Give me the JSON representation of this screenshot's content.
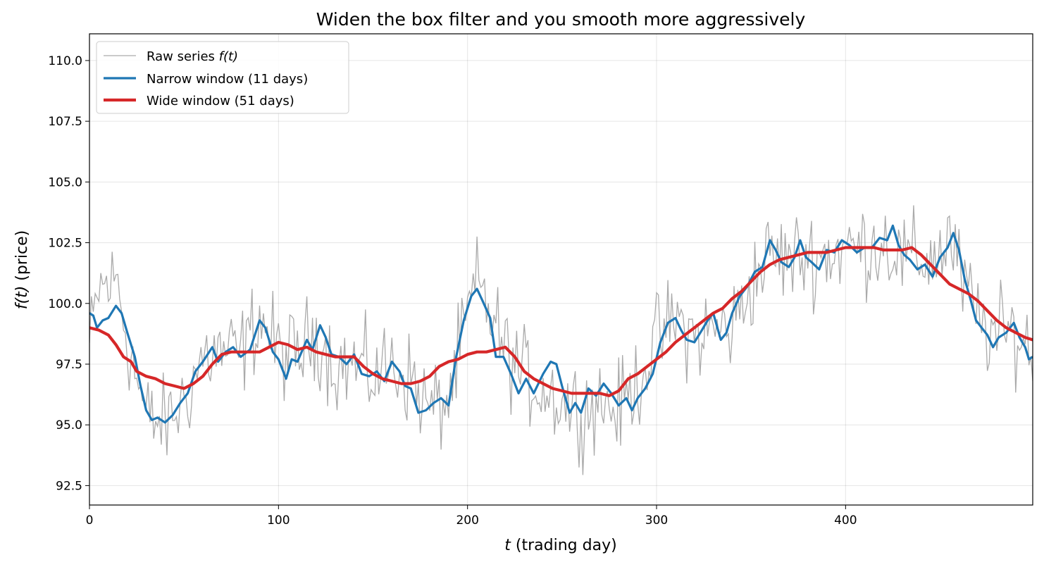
{
  "chart_data": {
    "type": "line",
    "title": "Widen the box filter and you smooth more aggressively",
    "xlabel_var": "t",
    "xlabel_rest": " (trading day)",
    "ylabel_var": "f(t)",
    "ylabel_rest": " (price)",
    "xlim": [
      0,
      499
    ],
    "ylim": [
      91.7,
      111.1
    ],
    "xticks": [
      0,
      100,
      200,
      300,
      400
    ],
    "yticks": [
      92.5,
      95.0,
      97.5,
      100.0,
      102.5,
      105.0,
      107.5,
      110.0
    ],
    "grid": true,
    "legend_position": "top-left",
    "colors": {
      "raw": "#aaaaaa",
      "narrow": "#1f77b4",
      "wide": "#d62728"
    },
    "series": [
      {
        "key": "raw",
        "legend_prefix": "Raw series ",
        "legend_math": "f(t)",
        "style": "thin-gray",
        "noise_amp": 1.9,
        "anchors": [
          [
            0,
            98.2
          ],
          [
            5,
            100.6
          ],
          [
            15,
            100.9
          ],
          [
            20,
            98.5
          ],
          [
            30,
            95.3
          ],
          [
            40,
            95.0
          ],
          [
            50,
            96.0
          ],
          [
            60,
            97.8
          ],
          [
            70,
            98.0
          ],
          [
            80,
            97.9
          ],
          [
            90,
            99.5
          ],
          [
            100,
            98.0
          ],
          [
            110,
            97.8
          ],
          [
            120,
            98.8
          ],
          [
            130,
            97.4
          ],
          [
            140,
            97.5
          ],
          [
            150,
            97.0
          ],
          [
            160,
            97.5
          ],
          [
            170,
            96.9
          ],
          [
            180,
            95.6
          ],
          [
            190,
            96.0
          ],
          [
            200,
            99.5
          ],
          [
            205,
            100.8
          ],
          [
            210,
            100.0
          ],
          [
            220,
            98.0
          ],
          [
            230,
            97.0
          ],
          [
            240,
            96.5
          ],
          [
            250,
            96.0
          ],
          [
            260,
            95.6
          ],
          [
            270,
            96.0
          ],
          [
            280,
            95.6
          ],
          [
            290,
            96.8
          ],
          [
            300,
            98.5
          ],
          [
            310,
            99.3
          ],
          [
            320,
            98.6
          ],
          [
            330,
            98.9
          ],
          [
            340,
            99.0
          ],
          [
            350,
            100.8
          ],
          [
            360,
            102.0
          ],
          [
            370,
            101.8
          ],
          [
            380,
            102.0
          ],
          [
            390,
            102.0
          ],
          [
            400,
            102.3
          ],
          [
            410,
            102.3
          ],
          [
            420,
            102.6
          ],
          [
            430,
            101.8
          ],
          [
            440,
            101.8
          ],
          [
            450,
            102.0
          ],
          [
            455,
            102.8
          ],
          [
            460,
            101.3
          ],
          [
            470,
            99.3
          ],
          [
            480,
            98.6
          ],
          [
            490,
            98.8
          ],
          [
            499,
            98.0
          ]
        ]
      },
      {
        "key": "narrow",
        "name": "Narrow window (11 days)",
        "style": "medium-blue",
        "points": [
          [
            0,
            99.6
          ],
          [
            2,
            99.5
          ],
          [
            4,
            99.0
          ],
          [
            7,
            99.3
          ],
          [
            10,
            99.4
          ],
          [
            14,
            99.9
          ],
          [
            17,
            99.6
          ],
          [
            20,
            98.8
          ],
          [
            24,
            97.8
          ],
          [
            27,
            96.6
          ],
          [
            30,
            95.6
          ],
          [
            33,
            95.2
          ],
          [
            36,
            95.3
          ],
          [
            40,
            95.1
          ],
          [
            44,
            95.4
          ],
          [
            48,
            95.9
          ],
          [
            52,
            96.3
          ],
          [
            56,
            97.2
          ],
          [
            60,
            97.6
          ],
          [
            65,
            98.2
          ],
          [
            68,
            97.6
          ],
          [
            72,
            98.0
          ],
          [
            76,
            98.2
          ],
          [
            80,
            97.8
          ],
          [
            85,
            98.1
          ],
          [
            90,
            99.3
          ],
          [
            93,
            99.0
          ],
          [
            97,
            98.0
          ],
          [
            100,
            97.7
          ],
          [
            104,
            96.9
          ],
          [
            107,
            97.7
          ],
          [
            110,
            97.6
          ],
          [
            115,
            98.5
          ],
          [
            118,
            98.1
          ],
          [
            122,
            99.1
          ],
          [
            125,
            98.6
          ],
          [
            128,
            97.9
          ],
          [
            132,
            97.8
          ],
          [
            136,
            97.5
          ],
          [
            140,
            97.9
          ],
          [
            144,
            97.1
          ],
          [
            148,
            97.0
          ],
          [
            152,
            97.2
          ],
          [
            156,
            96.8
          ],
          [
            160,
            97.6
          ],
          [
            164,
            97.2
          ],
          [
            167,
            96.6
          ],
          [
            170,
            96.5
          ],
          [
            174,
            95.5
          ],
          [
            178,
            95.6
          ],
          [
            182,
            95.9
          ],
          [
            186,
            96.1
          ],
          [
            190,
            95.8
          ],
          [
            194,
            97.8
          ],
          [
            198,
            99.3
          ],
          [
            202,
            100.3
          ],
          [
            205,
            100.6
          ],
          [
            208,
            100.1
          ],
          [
            212,
            99.4
          ],
          [
            215,
            97.8
          ],
          [
            219,
            97.8
          ],
          [
            223,
            97.1
          ],
          [
            227,
            96.3
          ],
          [
            231,
            96.9
          ],
          [
            235,
            96.3
          ],
          [
            240,
            97.1
          ],
          [
            244,
            97.6
          ],
          [
            247,
            97.5
          ],
          [
            250,
            96.6
          ],
          [
            254,
            95.5
          ],
          [
            257,
            95.9
          ],
          [
            260,
            95.5
          ],
          [
            264,
            96.5
          ],
          [
            268,
            96.2
          ],
          [
            272,
            96.7
          ],
          [
            276,
            96.3
          ],
          [
            280,
            95.8
          ],
          [
            284,
            96.1
          ],
          [
            287,
            95.6
          ],
          [
            290,
            96.1
          ],
          [
            294,
            96.5
          ],
          [
            298,
            97.1
          ],
          [
            302,
            98.4
          ],
          [
            306,
            99.2
          ],
          [
            310,
            99.4
          ],
          [
            313,
            98.9
          ],
          [
            316,
            98.5
          ],
          [
            320,
            98.4
          ],
          [
            324,
            98.9
          ],
          [
            327,
            99.3
          ],
          [
            330,
            99.6
          ],
          [
            334,
            98.5
          ],
          [
            337,
            98.8
          ],
          [
            340,
            99.6
          ],
          [
            344,
            100.3
          ],
          [
            348,
            100.7
          ],
          [
            352,
            101.3
          ],
          [
            356,
            101.5
          ],
          [
            360,
            102.6
          ],
          [
            363,
            102.2
          ],
          [
            366,
            101.7
          ],
          [
            370,
            101.5
          ],
          [
            373,
            101.9
          ],
          [
            376,
            102.6
          ],
          [
            379,
            101.9
          ],
          [
            382,
            101.7
          ],
          [
            386,
            101.4
          ],
          [
            390,
            102.2
          ],
          [
            394,
            102.1
          ],
          [
            398,
            102.6
          ],
          [
            402,
            102.4
          ],
          [
            406,
            102.1
          ],
          [
            410,
            102.3
          ],
          [
            414,
            102.3
          ],
          [
            418,
            102.7
          ],
          [
            422,
            102.6
          ],
          [
            425,
            103.2
          ],
          [
            428,
            102.4
          ],
          [
            431,
            102.0
          ],
          [
            434,
            101.8
          ],
          [
            438,
            101.4
          ],
          [
            442,
            101.6
          ],
          [
            446,
            101.1
          ],
          [
            450,
            101.9
          ],
          [
            454,
            102.3
          ],
          [
            457,
            102.9
          ],
          [
            460,
            102.2
          ],
          [
            463,
            101.0
          ],
          [
            466,
            100.2
          ],
          [
            469,
            99.3
          ],
          [
            472,
            99.0
          ],
          [
            475,
            98.7
          ],
          [
            478,
            98.2
          ],
          [
            481,
            98.6
          ],
          [
            485,
            98.8
          ],
          [
            489,
            99.2
          ],
          [
            492,
            98.6
          ],
          [
            495,
            98.2
          ],
          [
            497,
            97.7
          ],
          [
            499,
            97.8
          ]
        ]
      },
      {
        "key": "wide",
        "name": "Wide window (51 days)",
        "style": "thick-red",
        "points": [
          [
            0,
            99.0
          ],
          [
            5,
            98.9
          ],
          [
            10,
            98.7
          ],
          [
            14,
            98.3
          ],
          [
            18,
            97.8
          ],
          [
            22,
            97.6
          ],
          [
            25,
            97.2
          ],
          [
            30,
            97.0
          ],
          [
            35,
            96.9
          ],
          [
            40,
            96.7
          ],
          [
            45,
            96.6
          ],
          [
            50,
            96.5
          ],
          [
            55,
            96.7
          ],
          [
            60,
            97.0
          ],
          [
            65,
            97.5
          ],
          [
            70,
            97.9
          ],
          [
            75,
            98.0
          ],
          [
            80,
            98.0
          ],
          [
            85,
            98.0
          ],
          [
            90,
            98.0
          ],
          [
            95,
            98.2
          ],
          [
            100,
            98.4
          ],
          [
            105,
            98.3
          ],
          [
            110,
            98.1
          ],
          [
            115,
            98.2
          ],
          [
            120,
            98.0
          ],
          [
            125,
            97.9
          ],
          [
            130,
            97.8
          ],
          [
            135,
            97.8
          ],
          [
            140,
            97.8
          ],
          [
            145,
            97.4
          ],
          [
            150,
            97.1
          ],
          [
            155,
            96.9
          ],
          [
            160,
            96.8
          ],
          [
            165,
            96.7
          ],
          [
            170,
            96.7
          ],
          [
            175,
            96.8
          ],
          [
            180,
            97.0
          ],
          [
            185,
            97.4
          ],
          [
            190,
            97.6
          ],
          [
            195,
            97.7
          ],
          [
            200,
            97.9
          ],
          [
            205,
            98.0
          ],
          [
            210,
            98.0
          ],
          [
            215,
            98.1
          ],
          [
            220,
            98.2
          ],
          [
            225,
            97.8
          ],
          [
            230,
            97.2
          ],
          [
            235,
            96.9
          ],
          [
            240,
            96.7
          ],
          [
            245,
            96.5
          ],
          [
            250,
            96.4
          ],
          [
            255,
            96.3
          ],
          [
            260,
            96.3
          ],
          [
            265,
            96.3
          ],
          [
            270,
            96.3
          ],
          [
            275,
            96.2
          ],
          [
            280,
            96.4
          ],
          [
            285,
            96.9
          ],
          [
            290,
            97.1
          ],
          [
            295,
            97.4
          ],
          [
            300,
            97.7
          ],
          [
            305,
            98.0
          ],
          [
            310,
            98.4
          ],
          [
            315,
            98.7
          ],
          [
            320,
            99.0
          ],
          [
            325,
            99.3
          ],
          [
            330,
            99.6
          ],
          [
            335,
            99.8
          ],
          [
            340,
            100.2
          ],
          [
            345,
            100.5
          ],
          [
            350,
            100.9
          ],
          [
            355,
            101.3
          ],
          [
            360,
            101.6
          ],
          [
            365,
            101.8
          ],
          [
            370,
            101.9
          ],
          [
            375,
            102.0
          ],
          [
            380,
            102.1
          ],
          [
            385,
            102.1
          ],
          [
            390,
            102.1
          ],
          [
            395,
            102.2
          ],
          [
            400,
            102.3
          ],
          [
            405,
            102.3
          ],
          [
            410,
            102.3
          ],
          [
            415,
            102.3
          ],
          [
            420,
            102.2
          ],
          [
            425,
            102.2
          ],
          [
            430,
            102.2
          ],
          [
            435,
            102.3
          ],
          [
            440,
            102.0
          ],
          [
            445,
            101.6
          ],
          [
            450,
            101.2
          ],
          [
            455,
            100.8
          ],
          [
            460,
            100.6
          ],
          [
            465,
            100.4
          ],
          [
            470,
            100.1
          ],
          [
            475,
            99.7
          ],
          [
            480,
            99.3
          ],
          [
            485,
            99.0
          ],
          [
            490,
            98.8
          ],
          [
            495,
            98.6
          ],
          [
            499,
            98.5
          ]
        ]
      }
    ]
  }
}
